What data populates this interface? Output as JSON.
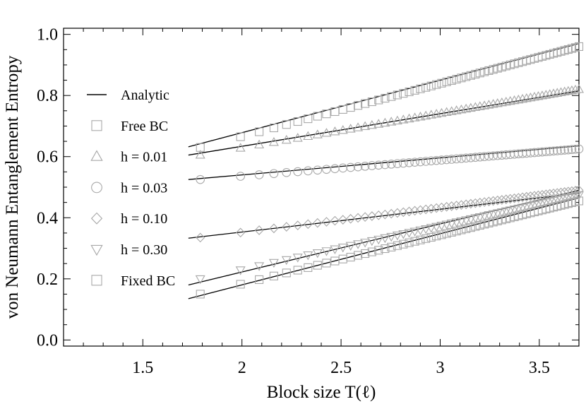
{
  "chart_data": {
    "type": "scatter",
    "title": "",
    "xlabel": "Block size T(ℓ)",
    "ylabel": "von Neumann Entanglement Entropy",
    "xlim": [
      1.1,
      3.7
    ],
    "ylim": [
      -0.02,
      1.02
    ],
    "xticks": [
      1.5,
      2,
      2.5,
      3,
      3.5
    ],
    "xtick_labels": [
      "1.5",
      "2",
      "2.5",
      "3",
      "3.5"
    ],
    "yticks": [
      0,
      0.2,
      0.4,
      0.6,
      0.8,
      1.0
    ],
    "ytick_labels": [
      "0.0",
      "0.2",
      "0.4",
      "0.6",
      "0.8",
      "1.0"
    ],
    "grid": false,
    "legend_position": "left",
    "legend": [
      {
        "label": "Analytic",
        "marker": "line"
      },
      {
        "label": "Free BC",
        "marker": "square"
      },
      {
        "label": "h = 0.01",
        "marker": "triangle"
      },
      {
        "label": "h = 0.03",
        "marker": "circle"
      },
      {
        "label": "h = 0.10",
        "marker": "diamond"
      },
      {
        "label": "h = 0.30",
        "marker": "triangle-down"
      },
      {
        "label": "Fixed BC",
        "marker": "square"
      }
    ],
    "marker_color": "#a8a8a8",
    "line_color": "#000000",
    "series": [
      {
        "name": "Free BC",
        "marker": "square",
        "x_start": 1.79,
        "x_end": 3.7,
        "y_start": 0.63,
        "y_end": 0.96,
        "fit": {
          "x_start": 1.73,
          "y_start": 0.632,
          "x_end": 3.7,
          "y_end": 0.97
        }
      },
      {
        "name": "h = 0.01",
        "marker": "triangle",
        "x_start": 1.79,
        "x_end": 3.7,
        "y_start": 0.605,
        "y_end": 0.82,
        "fit": {
          "x_start": 1.73,
          "y_start": 0.605,
          "x_end": 3.7,
          "y_end": 0.815
        }
      },
      {
        "name": "h = 0.03",
        "marker": "circle",
        "x_start": 1.79,
        "x_end": 3.7,
        "y_start": 0.525,
        "y_end": 0.625,
        "fit": {
          "x_start": 1.73,
          "y_start": 0.525,
          "x_end": 3.7,
          "y_end": 0.635
        }
      },
      {
        "name": "h = 0.10",
        "marker": "diamond",
        "x_start": 1.79,
        "x_end": 3.7,
        "y_start": 0.335,
        "y_end": 0.49,
        "fit": {
          "x_start": 1.73,
          "y_start": 0.333,
          "x_end": 3.7,
          "y_end": 0.48
        }
      },
      {
        "name": "h = 0.30",
        "marker": "triangle-down",
        "x_start": 1.79,
        "x_end": 3.7,
        "y_start": 0.2,
        "y_end": 0.475,
        "fit": {
          "x_start": 1.73,
          "y_start": 0.18,
          "x_end": 3.7,
          "y_end": 0.49
        }
      },
      {
        "name": "Fixed BC",
        "marker": "square",
        "x_start": 1.79,
        "x_end": 3.7,
        "y_start": 0.15,
        "y_end": 0.455,
        "fit": {
          "x_start": 1.73,
          "y_start": 0.135,
          "x_end": 3.7,
          "y_end": 0.465
        }
      }
    ]
  }
}
